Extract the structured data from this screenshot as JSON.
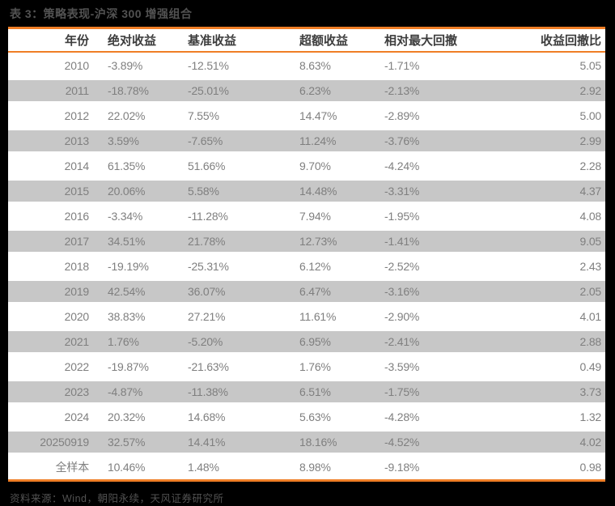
{
  "title": "表 3：策略表现-沪深 300 增强组合",
  "source": "资料来源：Wind，朝阳永续，天风证券研究所",
  "colors": {
    "accent_orange": "#EF7E26",
    "row_alt_gray": "#C7C7C7",
    "data_text_gray": "#7F7F7F",
    "header_text": "#3D3D3D",
    "caption_text": "#525252",
    "page_background": "#000000",
    "table_background": "#FFFFFF"
  },
  "table": {
    "headers": [
      "年份",
      "绝对收益",
      "基准收益",
      "超额收益",
      "相对最大回撤",
      "收益回撤比"
    ],
    "rows": [
      [
        "2010",
        "-3.89%",
        "-12.51%",
        "8.63%",
        "-1.71%",
        "5.05"
      ],
      [
        "2011",
        "-18.78%",
        "-25.01%",
        "6.23%",
        "-2.13%",
        "2.92"
      ],
      [
        "2012",
        "22.02%",
        "7.55%",
        "14.47%",
        "-2.89%",
        "5.00"
      ],
      [
        "2013",
        "3.59%",
        "-7.65%",
        "11.24%",
        "-3.76%",
        "2.99"
      ],
      [
        "2014",
        "61.35%",
        "51.66%",
        "9.70%",
        "-4.24%",
        "2.28"
      ],
      [
        "2015",
        "20.06%",
        "5.58%",
        "14.48%",
        "-3.31%",
        "4.37"
      ],
      [
        "2016",
        "-3.34%",
        "-11.28%",
        "7.94%",
        "-1.95%",
        "4.08"
      ],
      [
        "2017",
        "34.51%",
        "21.78%",
        "12.73%",
        "-1.41%",
        "9.05"
      ],
      [
        "2018",
        "-19.19%",
        "-25.31%",
        "6.12%",
        "-2.52%",
        "2.43"
      ],
      [
        "2019",
        "42.54%",
        "36.07%",
        "6.47%",
        "-3.16%",
        "2.05"
      ],
      [
        "2020",
        "38.83%",
        "27.21%",
        "11.61%",
        "-2.90%",
        "4.01"
      ],
      [
        "2021",
        "1.76%",
        "-5.20%",
        "6.95%",
        "-2.41%",
        "2.88"
      ],
      [
        "2022",
        "-19.87%",
        "-21.63%",
        "1.76%",
        "-3.59%",
        "0.49"
      ],
      [
        "2023",
        "-4.87%",
        "-11.38%",
        "6.51%",
        "-1.75%",
        "3.73"
      ],
      [
        "2024",
        "20.32%",
        "14.68%",
        "5.63%",
        "-4.28%",
        "1.32"
      ],
      [
        "20250919",
        "32.57%",
        "14.41%",
        "18.16%",
        "-4.52%",
        "4.02"
      ],
      [
        "全样本",
        "10.46%",
        "1.48%",
        "8.98%",
        "-9.18%",
        "0.98"
      ]
    ]
  }
}
